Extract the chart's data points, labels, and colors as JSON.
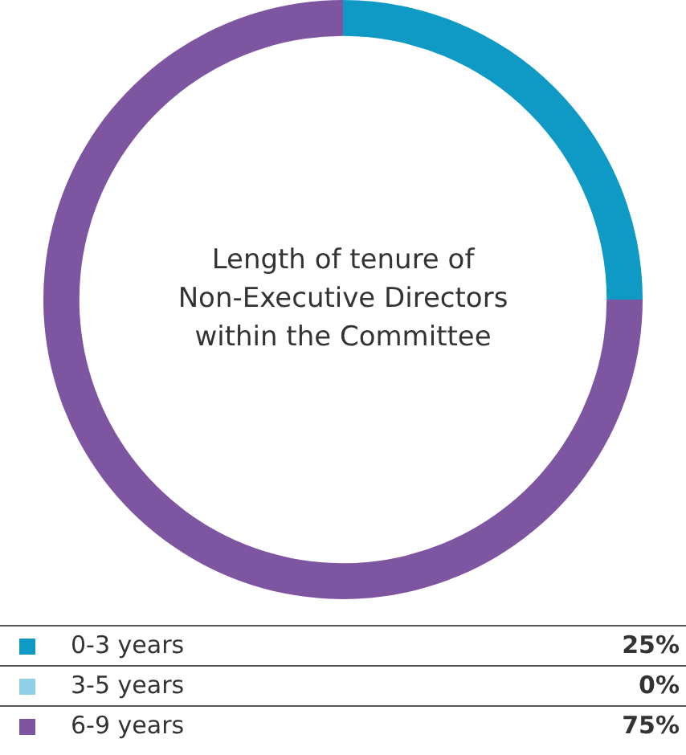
{
  "chart_data": {
    "type": "donut",
    "title": "Length of tenure of Non-Executive Directors within the Committee",
    "categories": [
      "0-3 years",
      "3-5 years",
      "6-9 years"
    ],
    "values": [
      25,
      0,
      75
    ],
    "colors": [
      "#0e9ac4",
      "#8fd0e6",
      "#7e55a0"
    ],
    "value_labels": [
      "25%",
      "0%",
      "75%"
    ],
    "legend": "bottom"
  }
}
